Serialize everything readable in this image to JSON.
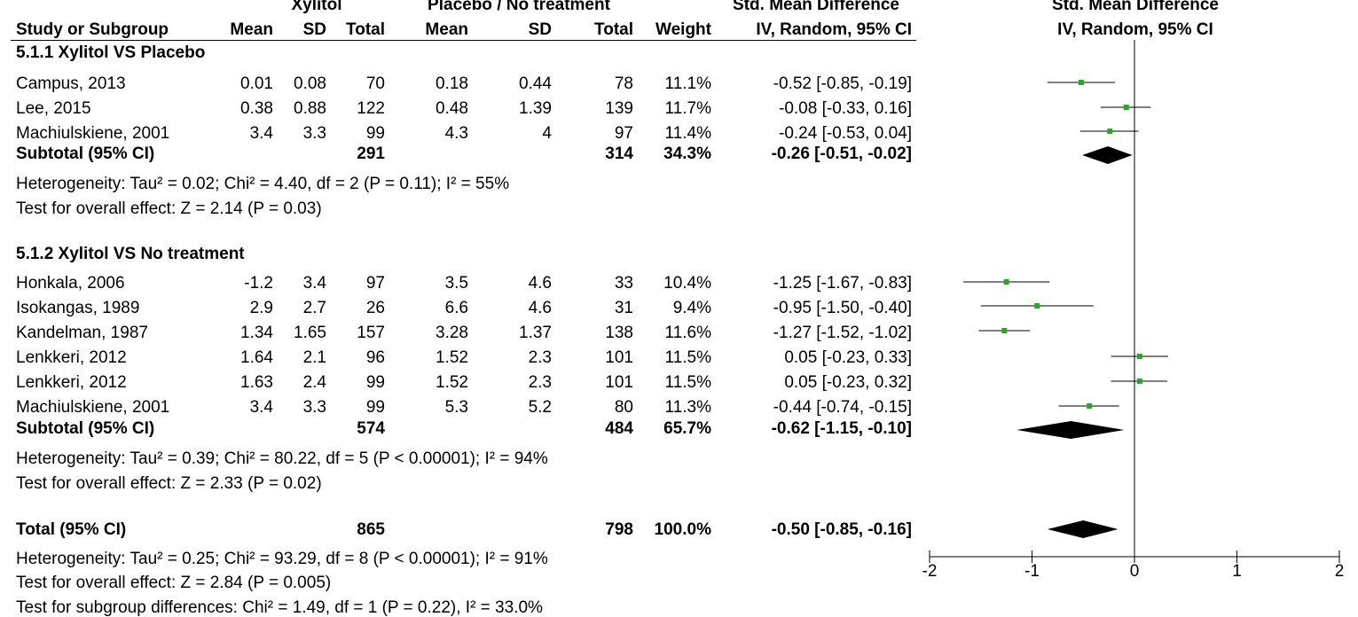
{
  "header": {
    "group1": "Xylitol",
    "group2": "Placebo / No treatment",
    "effect_title": "Std. Mean Difference",
    "effect_method": "IV, Random, 95% CI",
    "plot_title": "Std. Mean Difference",
    "plot_method": "IV, Random, 95% CI",
    "columns": [
      "Study or Subgroup",
      "Mean",
      "SD",
      "Total",
      "Mean",
      "SD",
      "Total",
      "Weight"
    ]
  },
  "subgroups": [
    {
      "title": "5.1.1 Xylitol VS Placebo",
      "studies": [
        {
          "name": "Campus, 2013",
          "m1": "0.01",
          "sd1": "0.08",
          "n1": "70",
          "m2": "0.18",
          "sd2": "0.44",
          "n2": "78",
          "weight": "11.1%",
          "ci": "-0.52 [-0.85, -0.19]"
        },
        {
          "name": "Lee, 2015",
          "m1": "0.38",
          "sd1": "0.88",
          "n1": "122",
          "m2": "0.48",
          "sd2": "1.39",
          "n2": "139",
          "weight": "11.7%",
          "ci": "-0.08 [-0.33, 0.16]"
        },
        {
          "name": "Machiulskiene, 2001",
          "m1": "3.4",
          "sd1": "3.3",
          "n1": "99",
          "m2": "4.3",
          "sd2": "4",
          "n2": "97",
          "weight": "11.4%",
          "ci": "-0.24 [-0.53, 0.04]"
        }
      ],
      "subtotal": {
        "label": "Subtotal (95% CI)",
        "n1": "291",
        "n2": "314",
        "weight": "34.3%",
        "ci": "-0.26 [-0.51, -0.02]"
      },
      "heterogeneity": "Heterogeneity: Tau² = 0.02; Chi² = 4.40, df = 2 (P = 0.11); I² = 55%",
      "overall": "Test for overall effect: Z = 2.14 (P = 0.03)"
    },
    {
      "title": "5.1.2 Xylitol VS No treatment",
      "studies": [
        {
          "name": "Honkala, 2006",
          "m1": "-1.2",
          "sd1": "3.4",
          "n1": "97",
          "m2": "3.5",
          "sd2": "4.6",
          "n2": "33",
          "weight": "10.4%",
          "ci": "-1.25 [-1.67, -0.83]"
        },
        {
          "name": "Isokangas, 1989",
          "m1": "2.9",
          "sd1": "2.7",
          "n1": "26",
          "m2": "6.6",
          "sd2": "4.6",
          "n2": "31",
          "weight": "9.4%",
          "ci": "-0.95 [-1.50, -0.40]"
        },
        {
          "name": "Kandelman, 1987",
          "m1": "1.34",
          "sd1": "1.65",
          "n1": "157",
          "m2": "3.28",
          "sd2": "1.37",
          "n2": "138",
          "weight": "11.6%",
          "ci": "-1.27 [-1.52, -1.02]"
        },
        {
          "name": "Lenkkeri, 2012",
          "m1": "1.64",
          "sd1": "2.1",
          "n1": "96",
          "m2": "1.52",
          "sd2": "2.3",
          "n2": "101",
          "weight": "11.5%",
          "ci": "0.05 [-0.23, 0.33]"
        },
        {
          "name": "Lenkkeri, 2012",
          "m1": "1.63",
          "sd1": "2.4",
          "n1": "99",
          "m2": "1.52",
          "sd2": "2.3",
          "n2": "101",
          "weight": "11.5%",
          "ci": "0.05 [-0.23, 0.32]"
        },
        {
          "name": "Machiulskiene, 2001",
          "m1": "3.4",
          "sd1": "3.3",
          "n1": "99",
          "m2": "5.3",
          "sd2": "5.2",
          "n2": "80",
          "weight": "11.3%",
          "ci": "-0.44 [-0.74, -0.15]"
        }
      ],
      "subtotal": {
        "label": "Subtotal (95% CI)",
        "n1": "574",
        "n2": "484",
        "weight": "65.7%",
        "ci": "-0.62 [-1.15, -0.10]"
      },
      "heterogeneity": "Heterogeneity: Tau² = 0.39; Chi² = 80.22, df = 5 (P < 0.00001); I² = 94%",
      "overall": "Test for overall effect: Z = 2.33 (P = 0.02)"
    }
  ],
  "total": {
    "label": "Total (95% CI)",
    "n1": "865",
    "n2": "798",
    "weight": "100.0%",
    "ci": "-0.50 [-0.85, -0.16]"
  },
  "total_heterogeneity": "Heterogeneity: Tau² = 0.25; Chi² = 93.29, df = 8 (P < 0.00001); I² = 91%",
  "total_overall": "Test for overall effect: Z = 2.84 (P = 0.005)",
  "subgroup_differences": "Test for subgroup differences: Chi² = 1.49, df = 1 (P = 0.22), I² = 33.0%",
  "chart_data": {
    "type": "forest",
    "title": "Std. Mean Difference",
    "subtitle": "IV, Random, 95% CI",
    "xlim": [
      -2,
      2
    ],
    "ticks": [
      -2,
      -1,
      0,
      1,
      2
    ],
    "tick_labels": [
      "-2",
      "-1",
      "0",
      "1",
      "2"
    ],
    "reference_line": 0,
    "colors": {
      "study_marker": "#22aa22",
      "diamond": "#000000",
      "line": "#000000"
    },
    "studies": [
      {
        "name": "Campus, 2013",
        "est": -0.52,
        "lo": -0.85,
        "hi": -0.19
      },
      {
        "name": "Lee, 2015",
        "est": -0.08,
        "lo": -0.33,
        "hi": 0.16
      },
      {
        "name": "Machiulskiene, 2001",
        "est": -0.24,
        "lo": -0.53,
        "hi": 0.04
      },
      {
        "name": "Honkala, 2006",
        "est": -1.25,
        "lo": -1.67,
        "hi": -0.83
      },
      {
        "name": "Isokangas, 1989",
        "est": -0.95,
        "lo": -1.5,
        "hi": -0.4
      },
      {
        "name": "Kandelman, 1987",
        "est": -1.27,
        "lo": -1.52,
        "hi": -1.02
      },
      {
        "name": "Lenkkeri, 2012",
        "est": 0.05,
        "lo": -0.23,
        "hi": 0.33
      },
      {
        "name": "Lenkkeri, 2012",
        "est": 0.05,
        "lo": -0.23,
        "hi": 0.32
      },
      {
        "name": "Machiulskiene, 2001",
        "est": -0.44,
        "lo": -0.74,
        "hi": -0.15
      }
    ],
    "diamonds": [
      {
        "name": "Subtotal 5.1.1",
        "est": -0.26,
        "lo": -0.51,
        "hi": -0.02
      },
      {
        "name": "Subtotal 5.1.2",
        "est": -0.62,
        "lo": -1.15,
        "hi": -0.1
      },
      {
        "name": "Total",
        "est": -0.5,
        "lo": -0.85,
        "hi": -0.16
      }
    ]
  }
}
